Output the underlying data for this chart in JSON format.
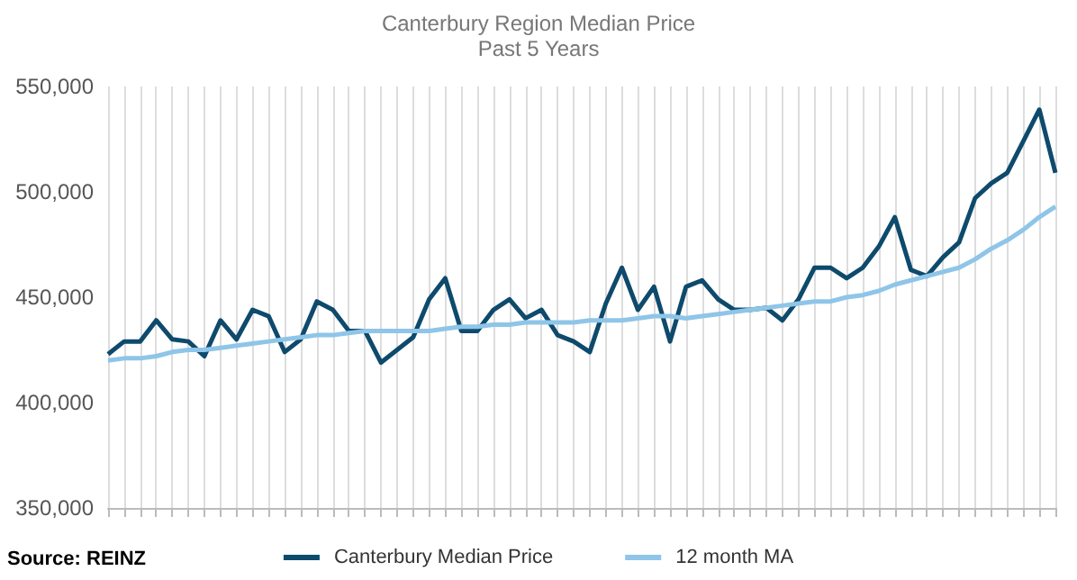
{
  "chart_data": {
    "type": "line",
    "title": "Canterbury Region Median Price",
    "subtitle": "Past 5 Years",
    "categories": [
      null,
      null,
      null,
      null,
      null,
      null,
      null,
      null,
      null,
      null,
      null,
      null,
      null,
      null,
      null,
      null,
      null,
      null,
      null,
      null,
      null,
      null,
      null,
      null,
      null,
      null,
      null,
      null,
      null,
      null,
      null,
      null,
      null,
      null,
      null,
      null,
      null,
      null,
      null,
      null,
      null,
      null,
      null,
      null,
      null,
      null,
      null,
      null,
      null,
      null,
      null,
      null,
      null,
      null,
      null,
      null,
      null,
      null,
      null,
      null
    ],
    "series": [
      {
        "name": "Canterbury Median Price",
        "color": "#0e4a6c",
        "values": [
          423000,
          429000,
          429000,
          439000,
          430000,
          429000,
          422000,
          439000,
          430000,
          444000,
          441000,
          424000,
          430000,
          448000,
          444000,
          434000,
          434000,
          419000,
          425000,
          431000,
          449000,
          459000,
          434000,
          434000,
          444000,
          449000,
          440000,
          444000,
          432000,
          429000,
          424000,
          447000,
          464000,
          444000,
          455000,
          429000,
          455000,
          458000,
          449000,
          444000,
          444000,
          445000,
          439000,
          449000,
          464000,
          464000,
          459000,
          464000,
          474000,
          488000,
          463000,
          460000,
          469000,
          476000,
          497000,
          504000,
          509000,
          524000,
          539000,
          509000
        ]
      },
      {
        "name": "12 month MA",
        "color": "#8ec5e8",
        "values": [
          420000,
          421000,
          421000,
          422000,
          424000,
          425000,
          425000,
          426000,
          427000,
          428000,
          429000,
          430000,
          431000,
          432000,
          432000,
          433000,
          434000,
          434000,
          434000,
          434000,
          434000,
          435000,
          436000,
          436000,
          437000,
          437000,
          438000,
          438000,
          438000,
          438000,
          439000,
          439000,
          439000,
          440000,
          441000,
          441000,
          440000,
          441000,
          442000,
          443000,
          444000,
          445000,
          446000,
          447000,
          448000,
          448000,
          450000,
          451000,
          453000,
          456000,
          458000,
          460000,
          462000,
          464000,
          468000,
          473000,
          477000,
          482000,
          488000,
          493000
        ]
      }
    ],
    "ylim": [
      350000,
      550000
    ],
    "yticks": [
      {
        "value": 350000,
        "label": "350,000"
      },
      {
        "value": 400000,
        "label": "400,000"
      },
      {
        "value": 450000,
        "label": "450,000"
      },
      {
        "value": 500000,
        "label": "500,000"
      },
      {
        "value": 550000,
        "label": "550,000"
      }
    ],
    "grid": "x",
    "legend": "bottom",
    "marker": "none",
    "line_style": "solid",
    "annotations": [
      "Source: REINZ"
    ]
  }
}
